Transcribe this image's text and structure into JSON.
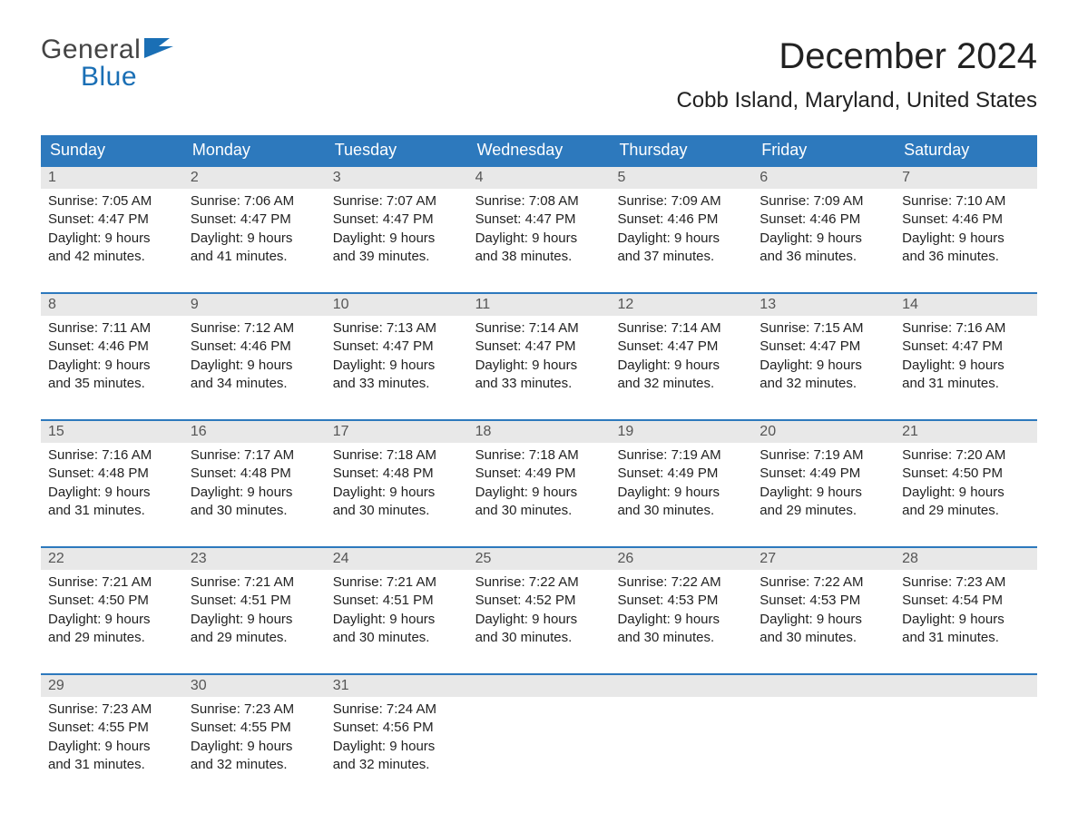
{
  "logo": {
    "top": "General",
    "bottom": "Blue"
  },
  "title": "December 2024",
  "location": "Cobb Island, Maryland, United States",
  "colors": {
    "header_bg": "#2d79bd",
    "header_text": "#ffffff",
    "accent": "#1a6fb5",
    "rule": "#2d79bd",
    "daynum_bg": "#e8e8e8",
    "body_text": "#222222",
    "page_bg": "#ffffff"
  },
  "day_names": [
    "Sunday",
    "Monday",
    "Tuesday",
    "Wednesday",
    "Thursday",
    "Friday",
    "Saturday"
  ],
  "weeks": [
    [
      {
        "n": "1",
        "sunrise": "7:05 AM",
        "sunset": "4:47 PM",
        "daylight": "9 hours and 42 minutes."
      },
      {
        "n": "2",
        "sunrise": "7:06 AM",
        "sunset": "4:47 PM",
        "daylight": "9 hours and 41 minutes."
      },
      {
        "n": "3",
        "sunrise": "7:07 AM",
        "sunset": "4:47 PM",
        "daylight": "9 hours and 39 minutes."
      },
      {
        "n": "4",
        "sunrise": "7:08 AM",
        "sunset": "4:47 PM",
        "daylight": "9 hours and 38 minutes."
      },
      {
        "n": "5",
        "sunrise": "7:09 AM",
        "sunset": "4:46 PM",
        "daylight": "9 hours and 37 minutes."
      },
      {
        "n": "6",
        "sunrise": "7:09 AM",
        "sunset": "4:46 PM",
        "daylight": "9 hours and 36 minutes."
      },
      {
        "n": "7",
        "sunrise": "7:10 AM",
        "sunset": "4:46 PM",
        "daylight": "9 hours and 36 minutes."
      }
    ],
    [
      {
        "n": "8",
        "sunrise": "7:11 AM",
        "sunset": "4:46 PM",
        "daylight": "9 hours and 35 minutes."
      },
      {
        "n": "9",
        "sunrise": "7:12 AM",
        "sunset": "4:46 PM",
        "daylight": "9 hours and 34 minutes."
      },
      {
        "n": "10",
        "sunrise": "7:13 AM",
        "sunset": "4:47 PM",
        "daylight": "9 hours and 33 minutes."
      },
      {
        "n": "11",
        "sunrise": "7:14 AM",
        "sunset": "4:47 PM",
        "daylight": "9 hours and 33 minutes."
      },
      {
        "n": "12",
        "sunrise": "7:14 AM",
        "sunset": "4:47 PM",
        "daylight": "9 hours and 32 minutes."
      },
      {
        "n": "13",
        "sunrise": "7:15 AM",
        "sunset": "4:47 PM",
        "daylight": "9 hours and 32 minutes."
      },
      {
        "n": "14",
        "sunrise": "7:16 AM",
        "sunset": "4:47 PM",
        "daylight": "9 hours and 31 minutes."
      }
    ],
    [
      {
        "n": "15",
        "sunrise": "7:16 AM",
        "sunset": "4:48 PM",
        "daylight": "9 hours and 31 minutes."
      },
      {
        "n": "16",
        "sunrise": "7:17 AM",
        "sunset": "4:48 PM",
        "daylight": "9 hours and 30 minutes."
      },
      {
        "n": "17",
        "sunrise": "7:18 AM",
        "sunset": "4:48 PM",
        "daylight": "9 hours and 30 minutes."
      },
      {
        "n": "18",
        "sunrise": "7:18 AM",
        "sunset": "4:49 PM",
        "daylight": "9 hours and 30 minutes."
      },
      {
        "n": "19",
        "sunrise": "7:19 AM",
        "sunset": "4:49 PM",
        "daylight": "9 hours and 30 minutes."
      },
      {
        "n": "20",
        "sunrise": "7:19 AM",
        "sunset": "4:49 PM",
        "daylight": "9 hours and 29 minutes."
      },
      {
        "n": "21",
        "sunrise": "7:20 AM",
        "sunset": "4:50 PM",
        "daylight": "9 hours and 29 minutes."
      }
    ],
    [
      {
        "n": "22",
        "sunrise": "7:21 AM",
        "sunset": "4:50 PM",
        "daylight": "9 hours and 29 minutes."
      },
      {
        "n": "23",
        "sunrise": "7:21 AM",
        "sunset": "4:51 PM",
        "daylight": "9 hours and 29 minutes."
      },
      {
        "n": "24",
        "sunrise": "7:21 AM",
        "sunset": "4:51 PM",
        "daylight": "9 hours and 30 minutes."
      },
      {
        "n": "25",
        "sunrise": "7:22 AM",
        "sunset": "4:52 PM",
        "daylight": "9 hours and 30 minutes."
      },
      {
        "n": "26",
        "sunrise": "7:22 AM",
        "sunset": "4:53 PM",
        "daylight": "9 hours and 30 minutes."
      },
      {
        "n": "27",
        "sunrise": "7:22 AM",
        "sunset": "4:53 PM",
        "daylight": "9 hours and 30 minutes."
      },
      {
        "n": "28",
        "sunrise": "7:23 AM",
        "sunset": "4:54 PM",
        "daylight": "9 hours and 31 minutes."
      }
    ],
    [
      {
        "n": "29",
        "sunrise": "7:23 AM",
        "sunset": "4:55 PM",
        "daylight": "9 hours and 31 minutes."
      },
      {
        "n": "30",
        "sunrise": "7:23 AM",
        "sunset": "4:55 PM",
        "daylight": "9 hours and 32 minutes."
      },
      {
        "n": "31",
        "sunrise": "7:24 AM",
        "sunset": "4:56 PM",
        "daylight": "9 hours and 32 minutes."
      },
      null,
      null,
      null,
      null
    ]
  ],
  "labels": {
    "sunrise": "Sunrise:",
    "sunset": "Sunset:",
    "daylight": "Daylight:"
  }
}
